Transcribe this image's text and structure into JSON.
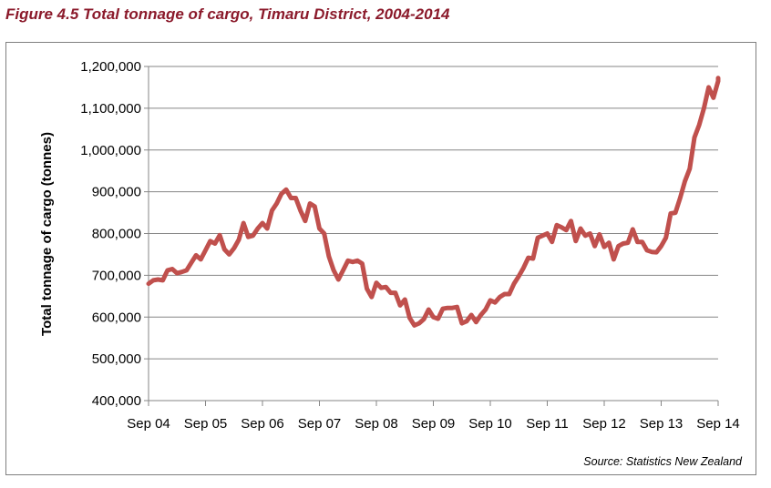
{
  "chart_data": {
    "type": "line",
    "title": "Figure 4.5 Total tonnage of cargo, Timaru District, 2004-2014",
    "xlabel": "",
    "ylabel": "Total tonnage of cargo (tonnes)",
    "source": "Source: Statistics New Zealand",
    "ylim": [
      400000,
      1200000
    ],
    "yticks": [
      400000,
      500000,
      600000,
      700000,
      800000,
      900000,
      1000000,
      1100000,
      1200000
    ],
    "ytick_labels": [
      "400,000",
      "500,000",
      "600,000",
      "700,000",
      "800,000",
      "900,000",
      "1,000,000",
      "1,100,000",
      "1,200,000"
    ],
    "xlim": [
      0,
      120
    ],
    "xticks": [
      0,
      12,
      24,
      36,
      48,
      60,
      72,
      84,
      96,
      108,
      120
    ],
    "xtick_labels": [
      "Sep 04",
      "Sep 05",
      "Sep 06",
      "Sep 07",
      "Sep 08",
      "Sep 09",
      "Sep 10",
      "Sep 11",
      "Sep 12",
      "Sep 13",
      "Sep 14"
    ],
    "grid": true,
    "line_color": "#c0504d",
    "series": [
      {
        "name": "",
        "x": [
          0,
          1,
          2,
          3,
          4,
          5,
          6,
          7,
          8,
          9,
          10,
          11,
          12,
          13,
          14,
          15,
          16,
          17,
          18,
          19,
          20,
          21,
          22,
          23,
          24,
          25,
          26,
          27,
          28,
          29,
          30,
          31,
          32,
          33,
          34,
          35,
          36,
          37,
          38,
          39,
          40,
          41,
          42,
          43,
          44,
          45,
          46,
          47,
          48,
          49,
          50,
          51,
          52,
          53,
          54,
          55,
          56,
          57,
          58,
          59,
          60,
          61,
          62,
          63,
          64,
          65,
          66,
          67,
          68,
          69,
          70,
          71,
          72,
          73,
          74,
          75,
          76,
          77,
          78,
          79,
          80,
          81,
          82,
          83,
          84,
          85,
          86,
          87,
          88,
          89,
          90,
          91,
          92,
          93,
          94,
          95,
          96,
          97,
          98,
          99,
          100,
          101,
          102,
          103,
          104,
          105,
          106,
          107,
          108,
          109,
          110,
          111,
          112,
          113,
          114,
          115,
          116,
          117,
          118,
          119,
          120
        ],
        "values": [
          680000,
          688000,
          690000,
          688000,
          712000,
          715000,
          705000,
          708000,
          712000,
          730000,
          748000,
          738000,
          760000,
          782000,
          776000,
          796000,
          762000,
          750000,
          765000,
          785000,
          825000,
          792000,
          795000,
          812000,
          825000,
          812000,
          855000,
          872000,
          895000,
          905000,
          885000,
          885000,
          855000,
          830000,
          872000,
          865000,
          812000,
          800000,
          745000,
          712000,
          690000,
          712000,
          735000,
          732000,
          735000,
          728000,
          668000,
          648000,
          682000,
          670000,
          672000,
          658000,
          658000,
          628000,
          642000,
          598000,
          580000,
          585000,
          595000,
          618000,
          600000,
          596000,
          620000,
          622000,
          622000,
          624000,
          585000,
          590000,
          605000,
          588000,
          605000,
          618000,
          640000,
          635000,
          648000,
          655000,
          655000,
          680000,
          698000,
          718000,
          742000,
          740000,
          790000,
          795000,
          800000,
          780000,
          820000,
          815000,
          808000,
          830000,
          782000,
          812000,
          795000,
          800000,
          770000,
          798000,
          768000,
          778000,
          738000,
          770000,
          776000,
          778000,
          810000,
          780000,
          780000,
          760000,
          756000,
          755000,
          770000,
          790000,
          848000,
          850000,
          885000,
          925000,
          955000,
          1030000,
          1060000,
          1100000,
          1150000,
          1125000,
          1165000
        ]
      },
      {
        "name": "",
        "x": [
          120
        ],
        "values": [
          1172000
        ]
      }
    ]
  }
}
